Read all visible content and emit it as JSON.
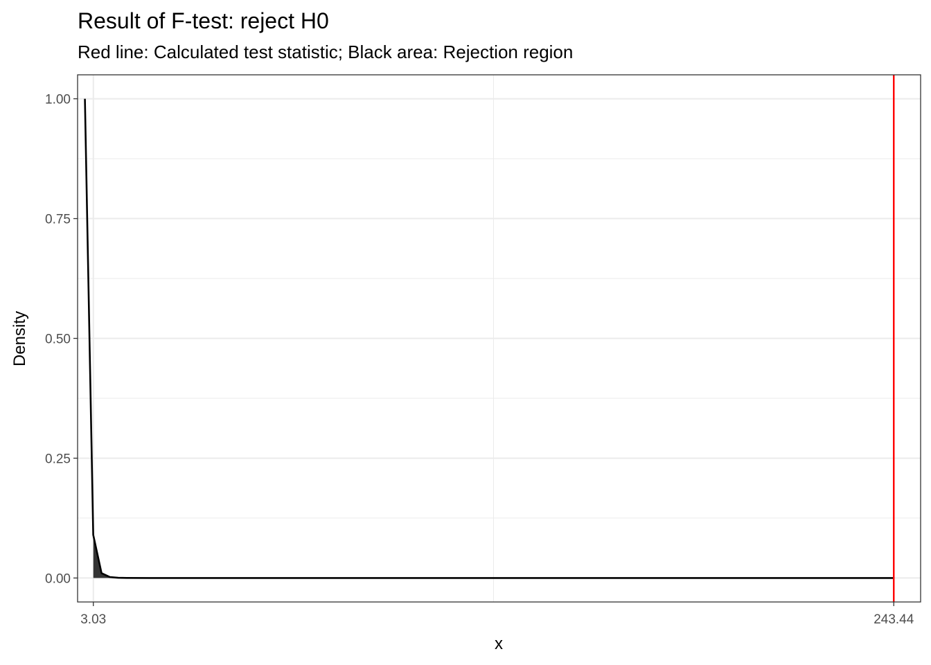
{
  "chart_data": {
    "type": "area",
    "title": "Result of F-test: reject H0",
    "subtitle": "Red line: Calculated test statistic; Black area: Rejection region",
    "xlabel": "x",
    "ylabel": "Density",
    "xlim": [
      -1.7,
      251.5
    ],
    "ylim": [
      -0.05,
      1.05
    ],
    "x_ticks": [
      3.03,
      243.44
    ],
    "x_tick_labels": [
      "3.03",
      "243.44"
    ],
    "y_ticks": [
      0,
      0.25,
      0.5,
      0.75,
      1.0
    ],
    "y_tick_labels": [
      "0.00",
      "0.25",
      "0.50",
      "0.75",
      "1.00"
    ],
    "grid": true,
    "density_curve": {
      "x": [
        0.5,
        3.0,
        5.5,
        8.0,
        10.5,
        13.0,
        20.0,
        40.0,
        80.0,
        120.0,
        160.0,
        200.0,
        243.44
      ],
      "y": [
        1.0,
        0.09,
        0.01,
        0.002,
        0.0005,
        0.0001,
        0.0,
        0.0,
        0.0,
        0.0,
        0.0,
        0.0,
        0.0
      ],
      "color": "#000000"
    },
    "rejection_region": {
      "x_start": 3.03,
      "color": "#333333"
    },
    "test_statistic": {
      "value": 243.44,
      "color": "#ff0000"
    }
  }
}
